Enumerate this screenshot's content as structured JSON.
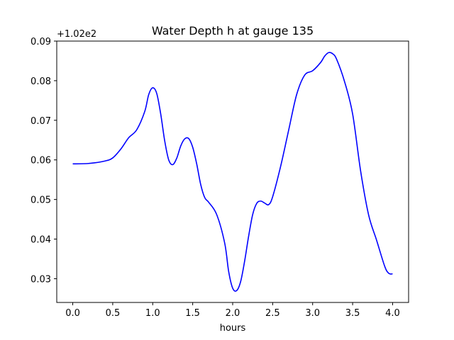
{
  "chart_data": {
    "type": "line",
    "title": "Water Depth h at gauge 135",
    "xlabel": "hours",
    "ylabel": "",
    "offset_label": "+1.02e2",
    "xlim": [
      -0.2,
      4.2
    ],
    "ylim": [
      0.024,
      0.09
    ],
    "x_ticks": [
      0.0,
      0.5,
      1.0,
      1.5,
      2.0,
      2.5,
      3.0,
      3.5,
      4.0
    ],
    "x_tick_labels": [
      "0.0",
      "0.5",
      "1.0",
      "1.5",
      "2.0",
      "2.5",
      "3.0",
      "3.5",
      "4.0"
    ],
    "y_ticks": [
      0.03,
      0.04,
      0.05,
      0.06,
      0.07,
      0.08,
      0.09
    ],
    "y_tick_labels": [
      "0.03",
      "0.04",
      "0.05",
      "0.06",
      "0.07",
      "0.08",
      "0.09"
    ],
    "grid": false,
    "line_color": "#0000ff",
    "series": [
      {
        "x": [
          0.0,
          0.2,
          0.4,
          0.5,
          0.6,
          0.7,
          0.8,
          0.9,
          0.95,
          1.0,
          1.05,
          1.1,
          1.15,
          1.2,
          1.25,
          1.3,
          1.35,
          1.4,
          1.45,
          1.5,
          1.55,
          1.6,
          1.65,
          1.7,
          1.8,
          1.9,
          1.95,
          2.0,
          2.05,
          2.1,
          2.15,
          2.2,
          2.25,
          2.3,
          2.35,
          2.4,
          2.45,
          2.5,
          2.6,
          2.7,
          2.8,
          2.9,
          3.0,
          3.1,
          3.15,
          3.2,
          3.25,
          3.3,
          3.4,
          3.5,
          3.6,
          3.7,
          3.8,
          3.9,
          3.95,
          4.0
        ],
        "y": [
          0.059,
          0.0591,
          0.0597,
          0.0605,
          0.0627,
          0.0656,
          0.0676,
          0.0722,
          0.0765,
          0.0782,
          0.0768,
          0.0716,
          0.0648,
          0.06,
          0.0588,
          0.0604,
          0.0635,
          0.0653,
          0.0654,
          0.0632,
          0.059,
          0.0538,
          0.0505,
          0.0493,
          0.0462,
          0.039,
          0.0318,
          0.0276,
          0.027,
          0.0293,
          0.0345,
          0.0408,
          0.0462,
          0.049,
          0.0496,
          0.0491,
          0.0487,
          0.0507,
          0.0584,
          0.0675,
          0.0765,
          0.0814,
          0.0825,
          0.0846,
          0.0862,
          0.0871,
          0.0868,
          0.0854,
          0.0797,
          0.0716,
          0.0572,
          0.0461,
          0.0397,
          0.0332,
          0.0314,
          0.0312
        ]
      }
    ]
  }
}
